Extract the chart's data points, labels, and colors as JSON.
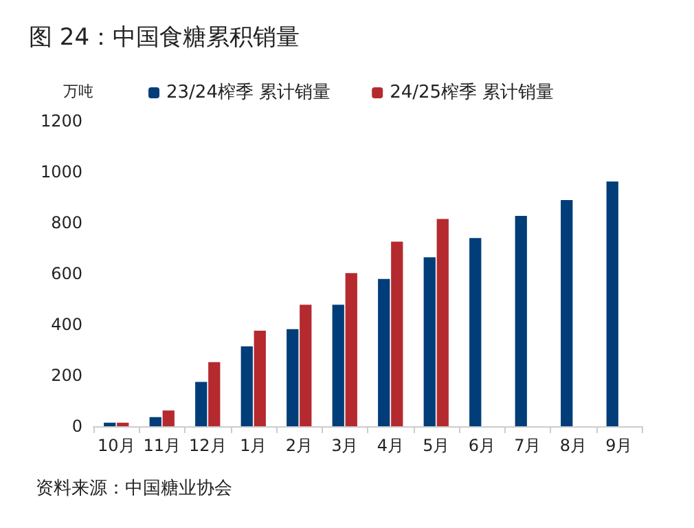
{
  "chart_data": {
    "type": "bar",
    "title": "图 24：中国食糖累积销量",
    "ylabel": "万吨",
    "categories": [
      "10月",
      "11月",
      "12月",
      "1月",
      "2月",
      "3月",
      "4月",
      "5月",
      "6月",
      "7月",
      "8月",
      "9月"
    ],
    "series": [
      {
        "name": "23/24榨季 累计销量",
        "color": "#003d79",
        "values": [
          14,
          36,
          174,
          314,
          382,
          478,
          579,
          664,
          740,
          827,
          889,
          962
        ]
      },
      {
        "name": "24/25榨季 累计销量",
        "color": "#b52a2f",
        "values": [
          14,
          62,
          252,
          376,
          478,
          602,
          726,
          815,
          null,
          null,
          null,
          null
        ]
      }
    ],
    "ylim": [
      0,
      1200
    ],
    "yticks": [
      0,
      200,
      400,
      600,
      800,
      1000,
      1200
    ],
    "grid": false,
    "legend": "top",
    "annotations": [
      "资料来源：中国糖业协会"
    ]
  }
}
